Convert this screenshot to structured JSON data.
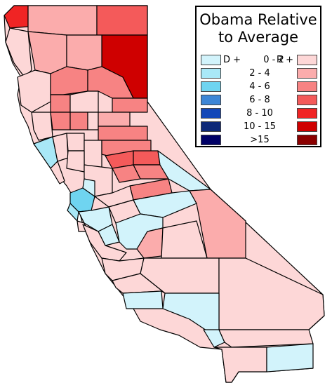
{
  "map": {
    "title_line1": "Obama Relative",
    "title_line2": "to Average",
    "legend": {
      "democratic_header": "D +",
      "republican_header": "R +",
      "ranges": [
        "0 - 2",
        "2 - 4",
        "4 - 6",
        "6 - 8",
        "8 - 10",
        "10 - 15",
        ">15"
      ],
      "democratic_colors": [
        "#d2f3fb",
        "#a9e8f7",
        "#6fd4f0",
        "#3d86d6",
        "#1347b8",
        "#0d2878",
        "#000066"
      ],
      "republican_colors": [
        "#fdd7d7",
        "#fbacac",
        "#f78383",
        "#f45a5a",
        "#f02424",
        "#cf0000",
        "#8b0000"
      ]
    }
  }
}
